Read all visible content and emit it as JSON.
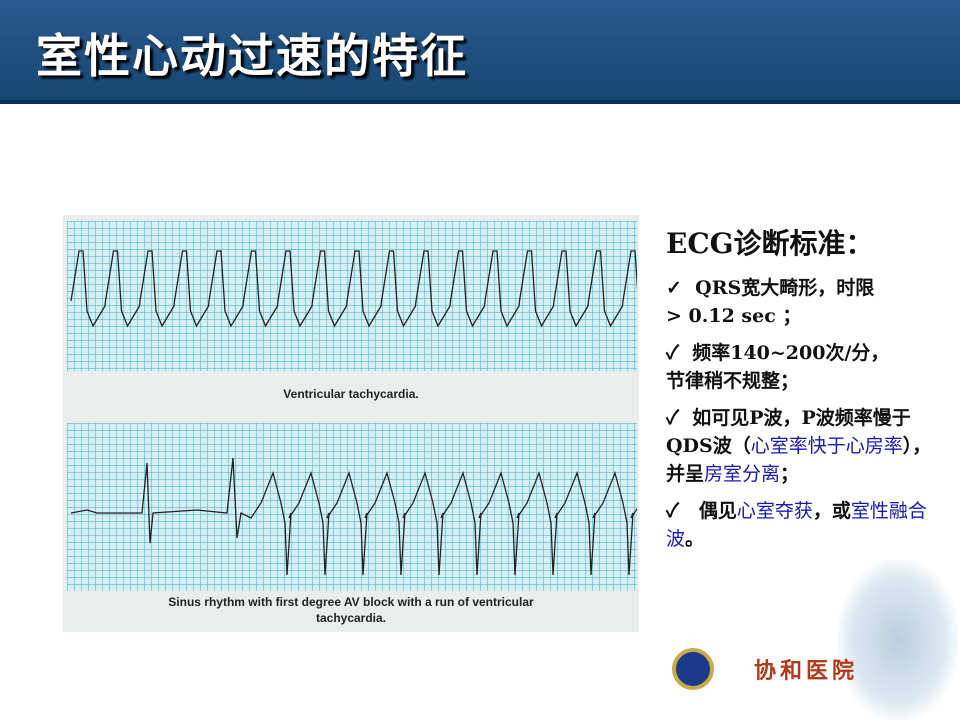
{
  "title": "室性心动过速的特征",
  "figure": {
    "caption_top": "Ventricular tachycardia.",
    "caption_bottom_line1": "Sinus rhythm with first degree AV block with a run of ventricular",
    "caption_bottom_line2": "tachycardia."
  },
  "criteria": {
    "heading": "ECG诊断标准：",
    "check_icon": "✓",
    "items": [
      {
        "a": "QRS宽大畸形，时限",
        "b": "> 0.12 sec ；"
      },
      {
        "a": "频率140~200次/分，",
        "b": "节律稍不规整；"
      },
      {
        "a": "如可见P波，P波频率",
        "b": "慢于QDS波（",
        "c": "心室率快于心房率",
        "d": "），并呈",
        "e": "房室分离",
        "f": "；"
      },
      {
        "a": "偶见",
        "b": "心室夺获",
        "c": "，或",
        "d": "室性融合波",
        "e": "。"
      }
    ]
  },
  "logo_text": "协和医院",
  "colors": {
    "header": "#174673",
    "highlight": "#1a1aa8"
  }
}
